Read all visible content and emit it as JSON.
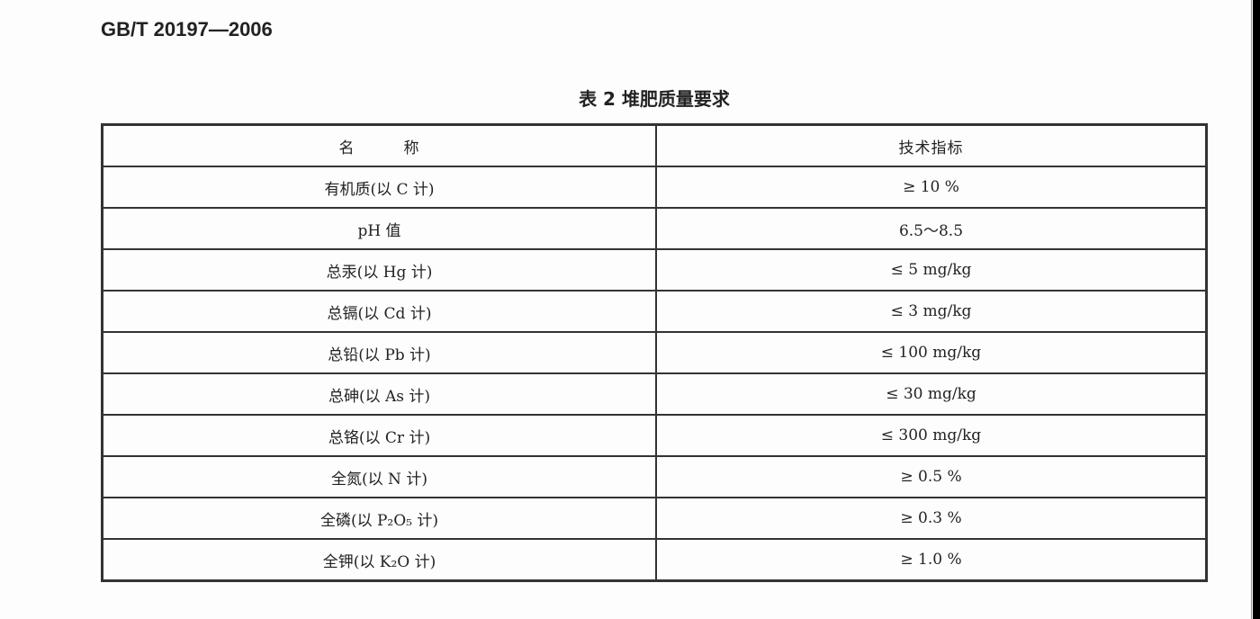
{
  "standard_code": "GB/T 20197—2006",
  "table_title": "表 2   堆肥质量要求",
  "columns": [
    "名　　　称",
    "技术指标"
  ],
  "rows": [
    {
      "name": "有机质(以 C 计)",
      "value": "≥ 10 %"
    },
    {
      "name": "pH 值",
      "value": "6.5～8.5"
    },
    {
      "name": "总汞(以 Hg 计)",
      "value": "≤ 5 mg/kg"
    },
    {
      "name": "总镉(以 Cd 计)",
      "value": "≤ 3 mg/kg"
    },
    {
      "name": "总铅(以 Pb 计)",
      "value": "≤ 100 mg/kg"
    },
    {
      "name": "总砷(以 As 计)",
      "value": "≤ 30 mg/kg"
    },
    {
      "name": "总铬(以 Cr 计)",
      "value": "≤ 300 mg/kg"
    },
    {
      "name": "全氮(以 N 计)",
      "value": "≥ 0.5 %"
    },
    {
      "name": "全磷(以 P₂O₅ 计)",
      "value": "≥ 0.3 %"
    },
    {
      "name": "全钾(以 K₂O 计)",
      "value": "≥ 1.0 %"
    }
  ]
}
